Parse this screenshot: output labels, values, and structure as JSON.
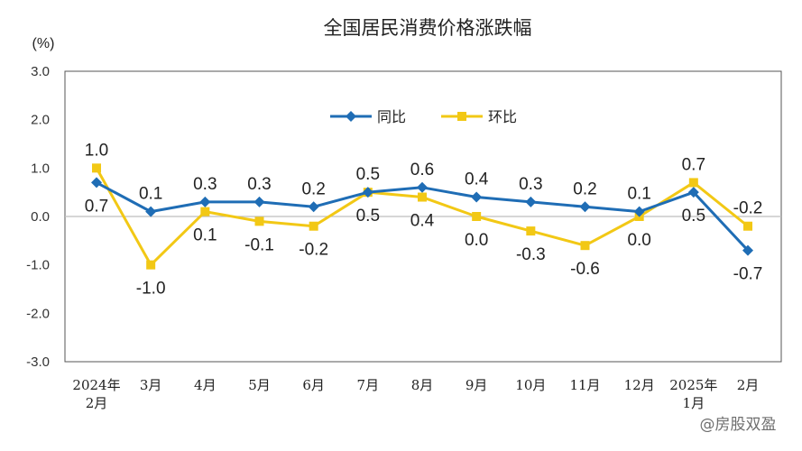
{
  "chart_data": {
    "type": "line",
    "title": "全国居民消费价格涨跌幅",
    "ylabel": "(%)",
    "ylim": [
      -3.0,
      3.0
    ],
    "yticks": [
      "3.0",
      "2.0",
      "1.0",
      "0.0",
      "-1.0",
      "-2.0",
      "-3.0"
    ],
    "categories": [
      [
        "2024年",
        "2月"
      ],
      [
        "3月"
      ],
      [
        "4月"
      ],
      [
        "5月"
      ],
      [
        "6月"
      ],
      [
        "7月"
      ],
      [
        "8月"
      ],
      [
        "9月"
      ],
      [
        "10月"
      ],
      [
        "11月"
      ],
      [
        "12月"
      ],
      [
        "2025年",
        "1月"
      ],
      [
        "2月"
      ]
    ],
    "series": [
      {
        "name": "同比",
        "color": "#1f6db5",
        "marker": "diamond",
        "values": [
          0.7,
          0.1,
          0.3,
          0.3,
          0.2,
          0.5,
          0.6,
          0.4,
          0.3,
          0.2,
          0.1,
          0.5,
          -0.7
        ],
        "labels": [
          "0.7",
          "0.1",
          "0.3",
          "0.3",
          "0.2",
          "0.5",
          "0.6",
          "0.4",
          "0.3",
          "0.2",
          "0.1",
          "0.5",
          "-0.7"
        ]
      },
      {
        "name": "环比",
        "color": "#f2c815",
        "marker": "square",
        "values": [
          1.0,
          -1.0,
          0.1,
          -0.1,
          -0.2,
          0.5,
          0.4,
          0.0,
          -0.3,
          -0.6,
          0.0,
          0.7,
          -0.2
        ],
        "labels": [
          "1.0",
          "-1.0",
          "0.1",
          "-0.1",
          "-0.2",
          "0.5",
          "0.4",
          "0.0",
          "-0.3",
          "-0.6",
          "0.0",
          "0.7",
          "-0.2"
        ]
      }
    ],
    "grid": false,
    "legend": "top-center"
  },
  "watermark": "@房股双盈"
}
